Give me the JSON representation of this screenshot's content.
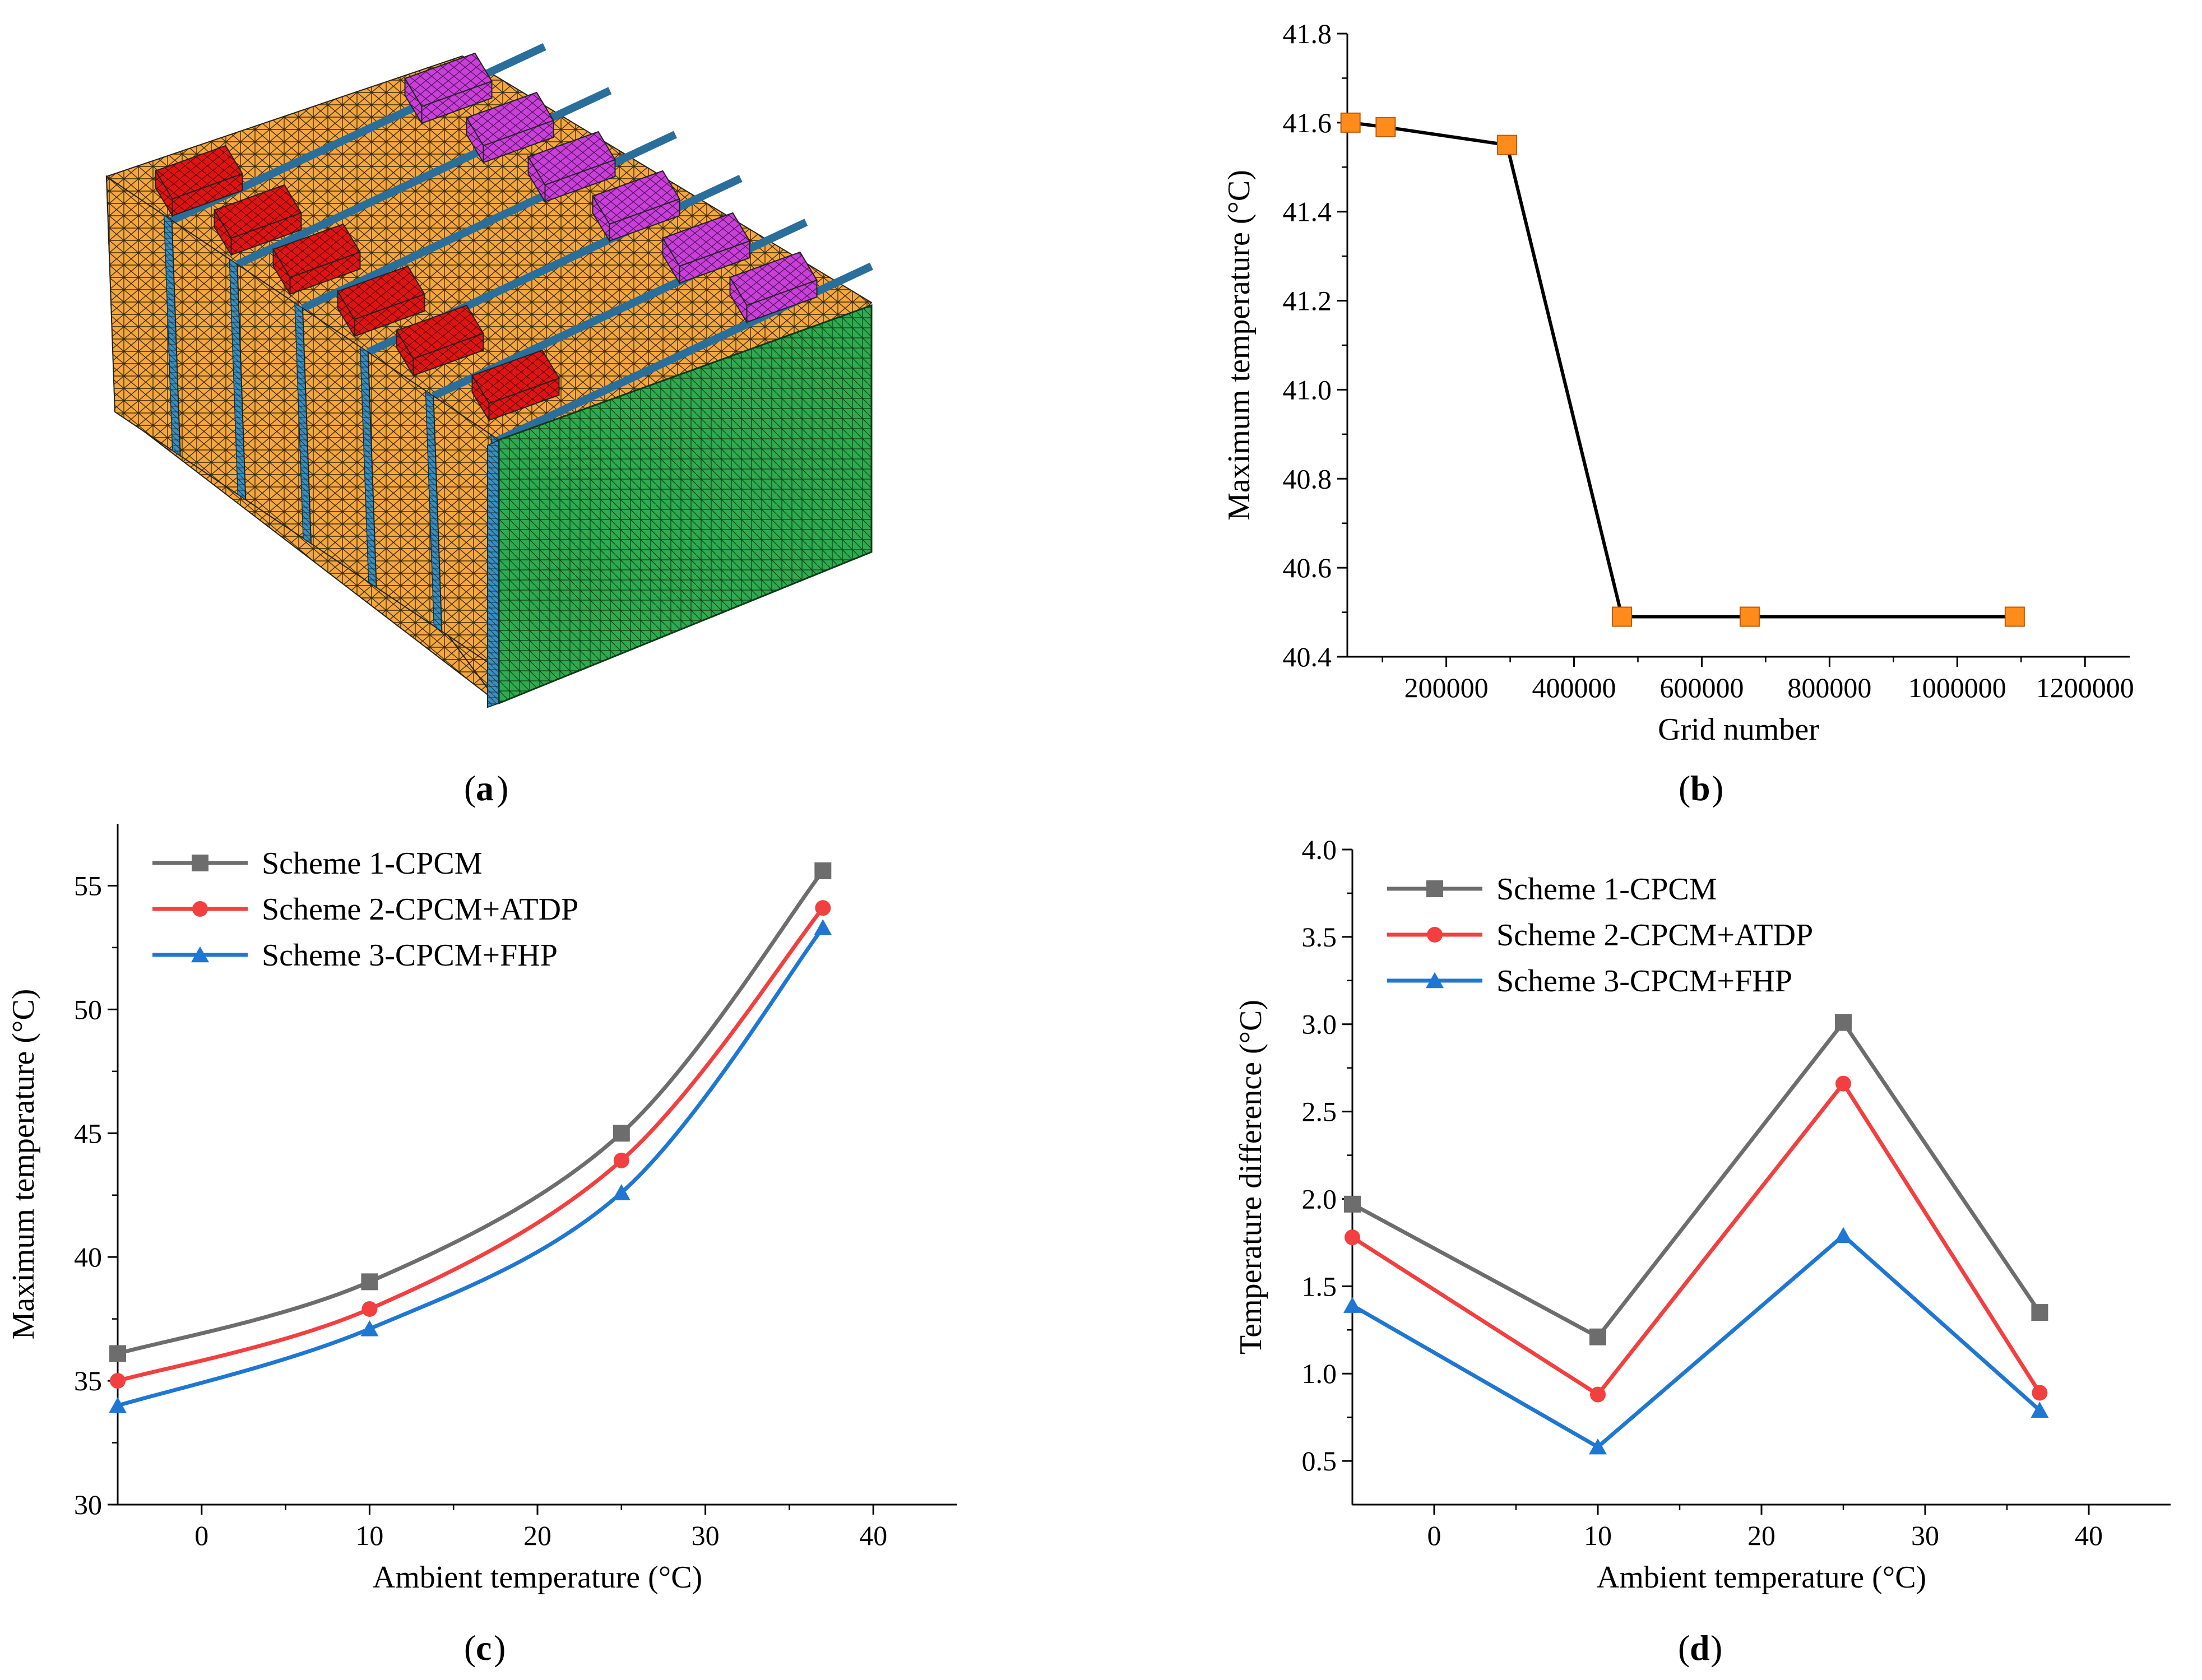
{
  "captions": {
    "a": "a",
    "b": "b",
    "c": "c",
    "d": "d"
  },
  "colors": {
    "scheme1": "#6d6d6d",
    "scheme2": "#f23f3f",
    "scheme3": "#1f77d4",
    "grid_marker": "#ff8c1a",
    "pcm_block": "#f5a73c",
    "mesh_end": "#2eaa4f",
    "positive_tab": "#e01313",
    "negative_tab": "#c940d9",
    "cell_gap": "#2a6e9c"
  },
  "chart_data": [
    {
      "id": "b",
      "type": "line",
      "title": "",
      "xlabel": "Grid number",
      "ylabel": "Maximum temperature (°C)",
      "x": [
        50000,
        105000,
        295000,
        475000,
        675000,
        1090000
      ],
      "y": [
        41.6,
        41.59,
        41.55,
        40.49,
        40.49,
        40.49
      ],
      "xlim": [
        45000,
        1270000
      ],
      "ylim": [
        40.4,
        41.8
      ],
      "xticks": [
        200000,
        400000,
        600000,
        800000,
        1000000,
        1200000
      ],
      "xtick_labels": [
        "200000",
        "400000",
        "600000",
        "800000",
        "1000000",
        "1200000"
      ],
      "yticks": [
        40.4,
        40.6,
        40.8,
        41.0,
        41.2,
        41.4,
        41.6,
        41.8
      ],
      "ytick_labels": [
        "40.4",
        "40.6",
        "40.8",
        "41.0",
        "41.2",
        "41.4",
        "41.6",
        "41.8"
      ],
      "marker": "square"
    },
    {
      "id": "c",
      "type": "line",
      "title": "",
      "xlabel": "Ambient temperature (°C)",
      "ylabel": "Maximum temperature (°C)",
      "x": [
        -5,
        10,
        25,
        37
      ],
      "xlim": [
        -5,
        45
      ],
      "ylim": [
        30,
        57.5
      ],
      "xticks": [
        0,
        10,
        20,
        30,
        40
      ],
      "xtick_labels": [
        "0",
        "10",
        "20",
        "30",
        "40"
      ],
      "yticks": [
        30,
        35,
        40,
        45,
        50,
        55
      ],
      "ytick_labels": [
        "30",
        "35",
        "40",
        "45",
        "50",
        "55"
      ],
      "legend_position": "top-left",
      "series": [
        {
          "name": "Scheme 1-CPCM",
          "values": [
            36.1,
            39.0,
            45.0,
            55.6
          ],
          "marker": "square"
        },
        {
          "name": "Scheme 2-CPCM+ATDP",
          "values": [
            35.0,
            37.9,
            43.9,
            54.1
          ],
          "marker": "circle"
        },
        {
          "name": "Scheme 3-CPCM+FHP",
          "values": [
            34.0,
            37.1,
            42.6,
            53.3
          ],
          "marker": "triangle"
        }
      ]
    },
    {
      "id": "d",
      "type": "line",
      "title": "",
      "xlabel": "Ambient temperature (°C)",
      "ylabel": "Temperature difference (°C)",
      "x": [
        -5,
        10,
        25,
        37
      ],
      "xlim": [
        -5,
        45
      ],
      "ylim": [
        0.25,
        4.0
      ],
      "xticks": [
        0,
        10,
        20,
        30,
        40
      ],
      "xtick_labels": [
        "0",
        "10",
        "20",
        "30",
        "40"
      ],
      "yticks": [
        0.5,
        1.0,
        1.5,
        2.0,
        2.5,
        3.0,
        3.5,
        4.0
      ],
      "ytick_labels": [
        "0.5",
        "1.0",
        "1.5",
        "2.0",
        "2.5",
        "3.0",
        "3.5",
        "4.0"
      ],
      "legend_position": "top-left",
      "series": [
        {
          "name": "Scheme 1-CPCM",
          "values": [
            1.97,
            1.21,
            3.01,
            1.35
          ],
          "marker": "square"
        },
        {
          "name": "Scheme 2-CPCM+ATDP",
          "values": [
            1.78,
            0.88,
            2.66,
            0.89
          ],
          "marker": "circle"
        },
        {
          "name": "Scheme 3-CPCM+FHP",
          "values": [
            1.39,
            0.58,
            1.79,
            0.79
          ],
          "marker": "triangle"
        }
      ]
    }
  ]
}
